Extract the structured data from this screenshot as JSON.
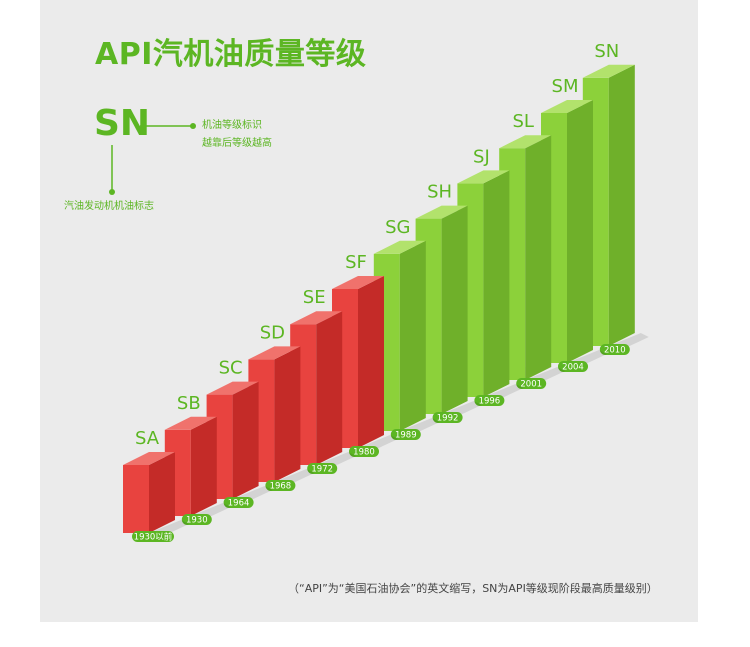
{
  "title": "API汽机油质量等级",
  "legend": {
    "sample": "SN",
    "desc_line1": "机油等级标识",
    "desc_line2": "越靠后等级越高",
    "engine_label": "汽油发动机机油标志"
  },
  "footnote": "（“API”为“美国石油协会”的英文缩写，SN为API等级现阶段最高质量级别）",
  "colors": {
    "red_front": "#e8433f",
    "green_front": "#8cd13a",
    "accent": "#5cb623"
  },
  "chart_data": {
    "type": "bar",
    "title": "API汽机油质量等级",
    "categories": [
      "SA",
      "SB",
      "SC",
      "SD",
      "SE",
      "SF",
      "SG",
      "SH",
      "SJ",
      "SL",
      "SM",
      "SN"
    ],
    "years": [
      "1930以前",
      "1930",
      "1964",
      "1968",
      "1972",
      "1980",
      "1989",
      "1992",
      "1996",
      "2001",
      "2004",
      "2010"
    ],
    "values": [
      1,
      2,
      3,
      4,
      5,
      6,
      7,
      8,
      9,
      10,
      11,
      12
    ],
    "color_groups": [
      "red",
      "red",
      "red",
      "red",
      "red",
      "red",
      "green",
      "green",
      "green",
      "green",
      "green",
      "green"
    ],
    "xlabel": "",
    "ylabel": "",
    "grid": false
  }
}
